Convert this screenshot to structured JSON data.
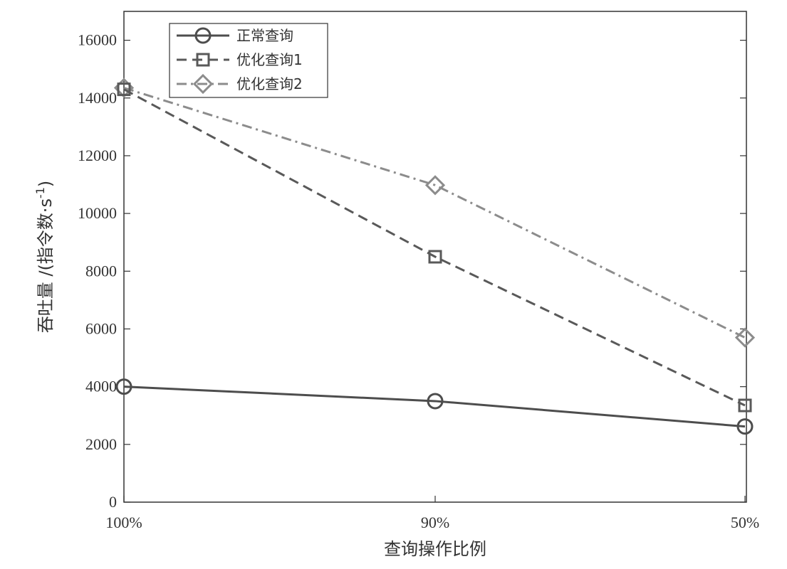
{
  "chart_data": {
    "type": "line",
    "categories": [
      "100%",
      "90%",
      "50%"
    ],
    "series": [
      {
        "name": "正常查询",
        "values": [
          4000,
          3500,
          2620
        ],
        "color": "#4d4d4d",
        "dash": "solid",
        "marker": "circle"
      },
      {
        "name": "优化查询1",
        "values": [
          14300,
          8500,
          3350
        ],
        "color": "#595959",
        "dash": "dashed",
        "marker": "square"
      },
      {
        "name": "优化查询2",
        "values": [
          14350,
          10980,
          5700
        ],
        "color": "#8c8c8c",
        "dash": "dashdot",
        "marker": "diamond"
      }
    ],
    "xlabel": "查询操作比例",
    "ylabel": "吞吐量 /(指令数·s",
    "ylabel_sup": "-1",
    "ylabel_close": ")",
    "ylim": [
      0,
      17000
    ],
    "yticks": [
      0,
      2000,
      4000,
      6000,
      8000,
      10000,
      12000,
      14000,
      16000
    ],
    "grid": false,
    "legend_position": "top-left"
  }
}
